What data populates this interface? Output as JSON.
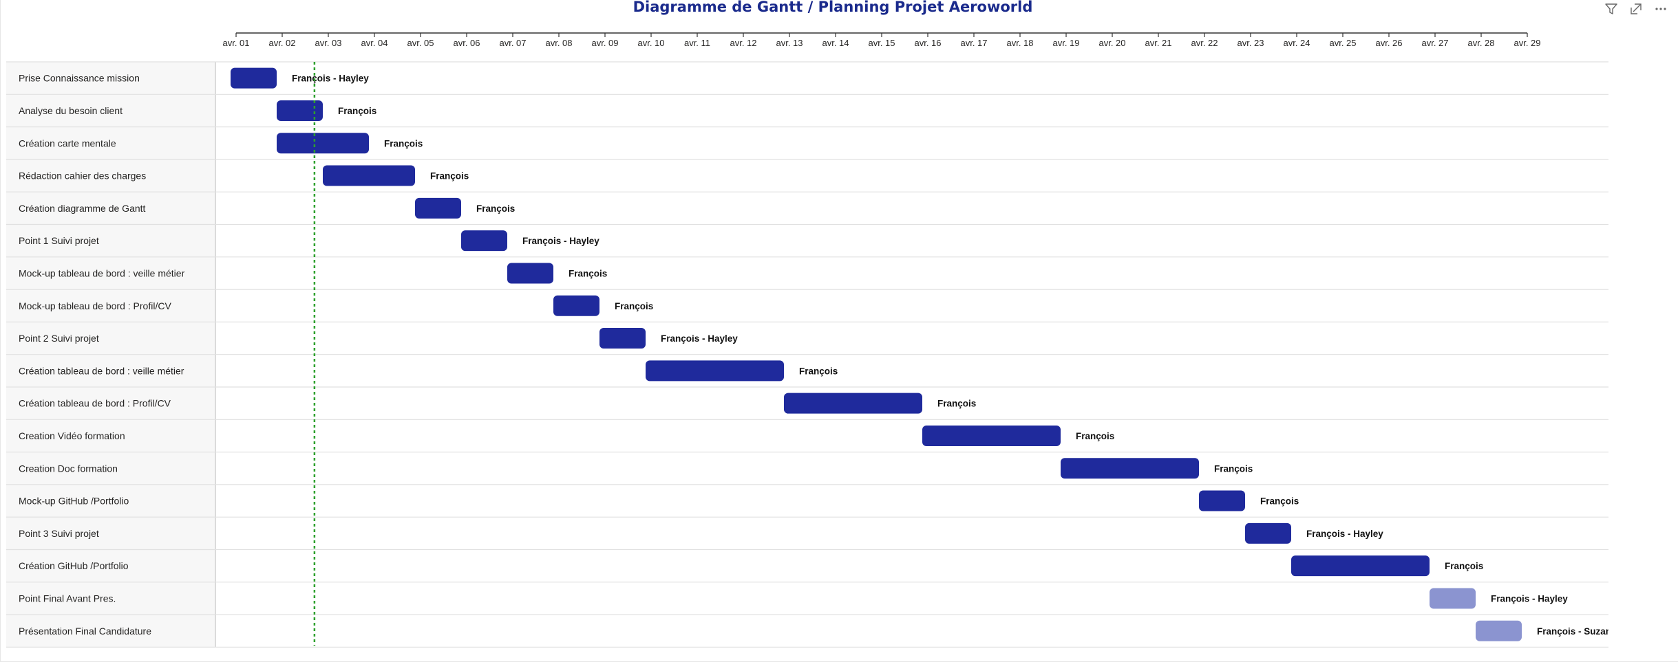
{
  "title": "Diagramme de Gantt / Planning Projet Aeroworld",
  "toolbar": {
    "icons": [
      "filter-icon",
      "focus-mode-icon",
      "more-options-icon"
    ]
  },
  "colors": {
    "title": "#1a2a8c",
    "bar_done": "#1f2a9c",
    "bar_planned": "#8b94d0",
    "today_line": "#2ca02c",
    "row_border": "#e1e1e1",
    "label_panel": "#f7f7f7"
  },
  "chart_data": {
    "type": "gantt",
    "title": "Diagramme de Gantt / Planning Projet Aeroworld",
    "x_axis": {
      "ticks": [
        "avr. 01",
        "avr. 02",
        "avr. 03",
        "avr. 04",
        "avr. 05",
        "avr. 06",
        "avr. 07",
        "avr. 08",
        "avr. 09",
        "avr. 10",
        "avr. 11",
        "avr. 12",
        "avr. 13",
        "avr. 14",
        "avr. 15",
        "avr. 16",
        "avr. 17",
        "avr. 18",
        "avr. 19",
        "avr. 20",
        "avr. 21",
        "avr. 22",
        "avr. 23",
        "avr. 24",
        "avr. 25",
        "avr. 26",
        "avr. 27",
        "avr. 28",
        "avr. 29"
      ],
      "range": [
        "avr. 01",
        "avr. 29"
      ]
    },
    "today_marker": "avr. 02.7",
    "tasks": [
      {
        "name": "Prise Connaissance mission",
        "start": "avr. 01",
        "end": "avr. 02",
        "resource": "François - Hayley",
        "status": "done"
      },
      {
        "name": "Analyse du besoin client",
        "start": "avr. 02",
        "end": "avr. 03",
        "resource": "François",
        "status": "done"
      },
      {
        "name": "Création carte mentale",
        "start": "avr. 02",
        "end": "avr. 04",
        "resource": "François",
        "status": "done"
      },
      {
        "name": "Rédaction cahier des charges",
        "start": "avr. 03",
        "end": "avr. 05",
        "resource": "François",
        "status": "done"
      },
      {
        "name": "Création diagramme de Gantt",
        "start": "avr. 05",
        "end": "avr. 06",
        "resource": "François",
        "status": "done"
      },
      {
        "name": "Point 1 Suivi projet",
        "start": "avr. 06",
        "end": "avr. 07",
        "resource": "François - Hayley",
        "status": "done"
      },
      {
        "name": "Mock-up tableau de bord : veille métier",
        "start": "avr. 07",
        "end": "avr. 08",
        "resource": "François",
        "status": "done"
      },
      {
        "name": "Mock-up tableau de bord : Profil/CV",
        "start": "avr. 08",
        "end": "avr. 09",
        "resource": "François",
        "status": "done"
      },
      {
        "name": "Point 2 Suivi projet",
        "start": "avr. 09",
        "end": "avr. 10",
        "resource": "François - Hayley",
        "status": "done"
      },
      {
        "name": "Création tableau de bord : veille métier",
        "start": "avr. 10",
        "end": "avr. 13",
        "resource": "François",
        "status": "done"
      },
      {
        "name": "Création tableau de bord : Profil/CV",
        "start": "avr. 13",
        "end": "avr. 16",
        "resource": "François",
        "status": "done"
      },
      {
        "name": "Creation Vidéo formation",
        "start": "avr. 16",
        "end": "avr. 19",
        "resource": "François",
        "status": "done"
      },
      {
        "name": "Creation Doc formation",
        "start": "avr. 19",
        "end": "avr. 22",
        "resource": "François",
        "status": "done"
      },
      {
        "name": "Mock-up GitHub /Portfolio",
        "start": "avr. 22",
        "end": "avr. 23",
        "resource": "François",
        "status": "done"
      },
      {
        "name": "Point 3 Suivi projet",
        "start": "avr. 23",
        "end": "avr. 24",
        "resource": "François - Hayley",
        "status": "done"
      },
      {
        "name": "Création GitHub /Portfolio",
        "start": "avr. 24",
        "end": "avr. 27",
        "resource": "François",
        "status": "done"
      },
      {
        "name": "Point Final Avant Pres.",
        "start": "avr. 27",
        "end": "avr. 28",
        "resource": "François - Hayley",
        "status": "planned"
      },
      {
        "name": "Présentation Final Candidature",
        "start": "avr. 28",
        "end": "avr. 29",
        "resource": "François - Suzan",
        "status": "planned"
      }
    ]
  }
}
